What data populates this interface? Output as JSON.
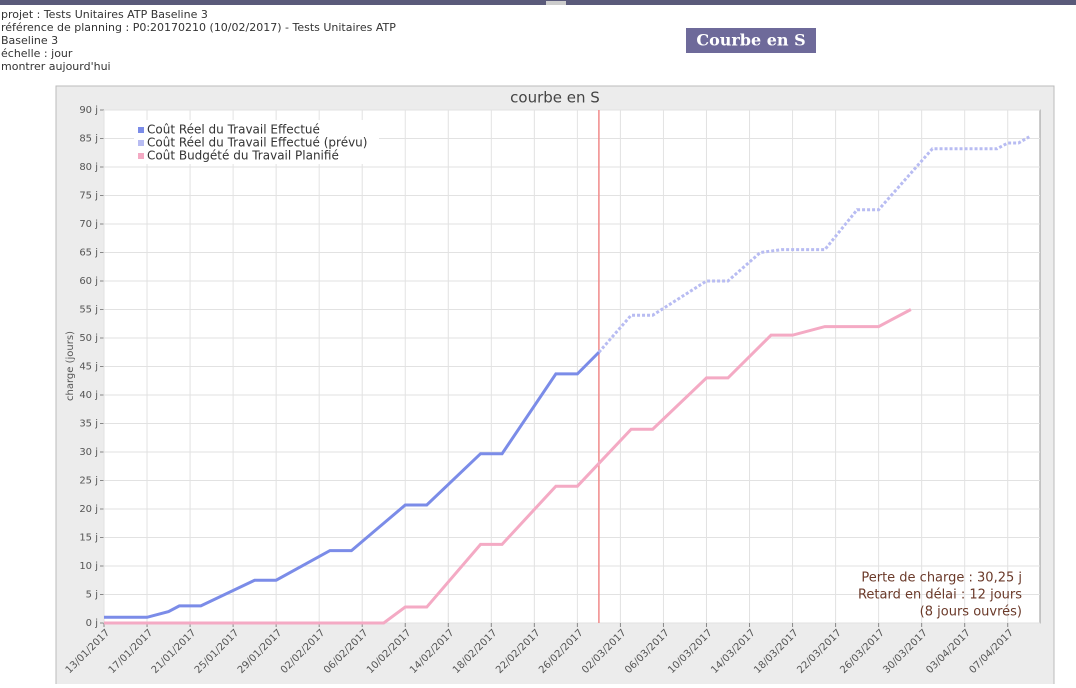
{
  "header": {
    "lines": [
      "projet : Tests Unitaires ATP Baseline 3",
      "référence de planning : P0:20170210 (10/02/2017) - Tests Unitaires ATP",
      "Baseline 3",
      "échelle : jour",
      "montrer aujourd'hui"
    ],
    "button": "Courbe en S"
  },
  "chart_data": {
    "type": "line",
    "title": "courbe en S",
    "y_label": "charge (jours)",
    "xlim": [
      "2017-01-13",
      "2017-04-10"
    ],
    "xticks": [
      {
        "value": "2017-01-13",
        "label": "13/01/2017"
      },
      {
        "value": "2017-01-17",
        "label": "17/01/2017"
      },
      {
        "value": "2017-01-21",
        "label": "21/01/2017"
      },
      {
        "value": "2017-01-25",
        "label": "25/01/2017"
      },
      {
        "value": "2017-01-29",
        "label": "29/01/2017"
      },
      {
        "value": "2017-02-02",
        "label": "02/02/2017"
      },
      {
        "value": "2017-02-06",
        "label": "06/02/2017"
      },
      {
        "value": "2017-02-10",
        "label": "10/02/2017"
      },
      {
        "value": "2017-02-14",
        "label": "14/02/2017"
      },
      {
        "value": "2017-02-18",
        "label": "18/02/2017"
      },
      {
        "value": "2017-02-22",
        "label": "22/02/2017"
      },
      {
        "value": "2017-02-26",
        "label": "26/02/2017"
      },
      {
        "value": "2017-03-02",
        "label": "02/03/2017"
      },
      {
        "value": "2017-03-06",
        "label": "06/03/2017"
      },
      {
        "value": "2017-03-10",
        "label": "10/03/2017"
      },
      {
        "value": "2017-03-14",
        "label": "14/03/2017"
      },
      {
        "value": "2017-03-18",
        "label": "18/03/2017"
      },
      {
        "value": "2017-03-22",
        "label": "22/03/2017"
      },
      {
        "value": "2017-03-26",
        "label": "26/03/2017"
      },
      {
        "value": "2017-03-30",
        "label": "30/03/2017"
      },
      {
        "value": "2017-04-03",
        "label": "03/04/2017"
      },
      {
        "value": "2017-04-07",
        "label": "07/04/2017"
      }
    ],
    "ylim": [
      0,
      90
    ],
    "yticks": [
      {
        "value": 0,
        "label": "0 j"
      },
      {
        "value": 5,
        "label": "5 j"
      },
      {
        "value": 10,
        "label": "10 j"
      },
      {
        "value": 15,
        "label": "15 j"
      },
      {
        "value": 20,
        "label": "20 j"
      },
      {
        "value": 25,
        "label": "25 j"
      },
      {
        "value": 30,
        "label": "30 j"
      },
      {
        "value": 35,
        "label": "35 j"
      },
      {
        "value": 40,
        "label": "40 j"
      },
      {
        "value": 45,
        "label": "45 j"
      },
      {
        "value": 50,
        "label": "50 j"
      },
      {
        "value": 55,
        "label": "55 j"
      },
      {
        "value": 60,
        "label": "60 j"
      },
      {
        "value": 65,
        "label": "65 j"
      },
      {
        "value": 70,
        "label": "70 j"
      },
      {
        "value": 75,
        "label": "75 j"
      },
      {
        "value": 80,
        "label": "80 j"
      },
      {
        "value": 85,
        "label": "85 j"
      },
      {
        "value": 90,
        "label": "90 j"
      }
    ],
    "grid": true,
    "legend": "top-left",
    "today": {
      "x": "2017-02-28",
      "color": "#f08a8a"
    },
    "series": [
      {
        "name": "Coût Réel du Travail Effectué",
        "color": "#7b8ce8",
        "dashed": false,
        "x": [
          "2017-01-13",
          "2017-01-17",
          "2017-01-19",
          "2017-01-20",
          "2017-01-22",
          "2017-01-27",
          "2017-01-29",
          "2017-02-03",
          "2017-02-05",
          "2017-02-10",
          "2017-02-12",
          "2017-02-17",
          "2017-02-19",
          "2017-02-24",
          "2017-02-26",
          "2017-02-28"
        ],
        "values": [
          1,
          1,
          2,
          3,
          3,
          7.5,
          7.5,
          12.7,
          12.7,
          20.7,
          20.7,
          29.7,
          29.7,
          43.7,
          43.7,
          47.5
        ]
      },
      {
        "name": "Coût Réel du Travail Effectué (prévu)",
        "color": "#b8bcf2",
        "dashed": true,
        "x": [
          "2017-02-28",
          "2017-03-03",
          "2017-03-05",
          "2017-03-10",
          "2017-03-12",
          "2017-03-15",
          "2017-03-17",
          "2017-03-21",
          "2017-03-24",
          "2017-03-26",
          "2017-03-31",
          "2017-04-06",
          "2017-04-07",
          "2017-04-08",
          "2017-04-09"
        ],
        "values": [
          47.5,
          54,
          54,
          60,
          60,
          65,
          65.5,
          65.5,
          72.5,
          72.5,
          83.2,
          83.2,
          84.2,
          84.2,
          85.3
        ]
      },
      {
        "name": "Coût Budgété du Travail Planifié",
        "color": "#f4aac4",
        "dashed": false,
        "x": [
          "2017-01-13",
          "2017-02-08",
          "2017-02-10",
          "2017-02-12",
          "2017-02-17",
          "2017-02-19",
          "2017-02-24",
          "2017-02-26",
          "2017-03-03",
          "2017-03-05",
          "2017-03-10",
          "2017-03-12",
          "2017-03-16",
          "2017-03-18",
          "2017-03-21",
          "2017-03-26",
          "2017-03-29"
        ],
        "values": [
          0,
          0,
          2.8,
          2.8,
          13.8,
          13.8,
          24,
          24,
          34,
          34,
          43,
          43,
          50.5,
          50.5,
          52,
          52,
          55
        ]
      }
    ],
    "annotations": [
      "Perte de charge : 30,25 j",
      "Retard en délai : 12 jours",
      "(8 jours ouvrés)"
    ]
  }
}
